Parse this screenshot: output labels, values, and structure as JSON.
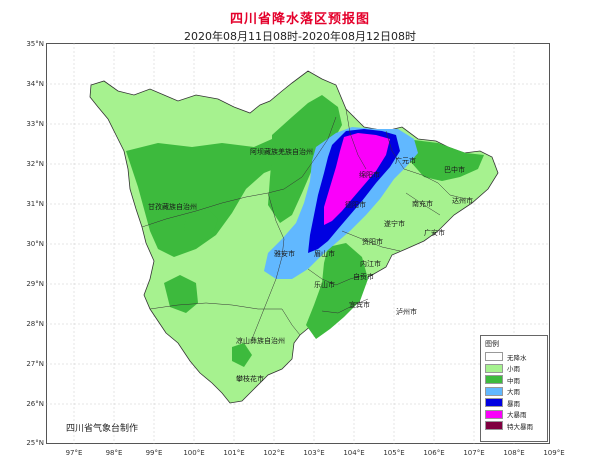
{
  "title": "四川省降水落区预报图",
  "subtitle": "2020年08月11日08时-2020年08月12日08时",
  "credit": "四川省气象台制作",
  "lat_labels": [
    "35°N",
    "34°N",
    "33°N",
    "32°N",
    "31°N",
    "30°N",
    "29°N",
    "28°N",
    "27°N",
    "26°N",
    "25°N"
  ],
  "lon_labels": [
    "97°E",
    "98°E",
    "99°E",
    "100°E",
    "101°E",
    "102°E",
    "103°E",
    "104°E",
    "105°E",
    "106°E",
    "107°E",
    "108°E",
    "109°E"
  ],
  "places": {
    "aba": "阿坝藏族羌族自治州",
    "mianyang": "绵阳市",
    "guangyuan": "广元市",
    "bazhong": "巴中市",
    "nanchong": "南充市",
    "dazhou": "达州市",
    "deyang": "德阳市",
    "suining": "遂宁市",
    "guangan": "广安市",
    "ganzi": "甘孜藏族自治州",
    "yaan": "雅安市",
    "meishan": "眉山市",
    "ziyang": "资阳市",
    "neijiang": "内江市",
    "leshan": "乐山市",
    "zigong": "自贡市",
    "yibin": "宜宾市",
    "luzhou": "泸州市",
    "liangshan": "凉山彝族自治州",
    "panzhihua": "攀枝花市"
  },
  "legend": {
    "title": "图例",
    "items": [
      {
        "label": "无降水",
        "color": "#ffffff"
      },
      {
        "label": "小雨",
        "color": "#a6f28f"
      },
      {
        "label": "中雨",
        "color": "#3dba3d"
      },
      {
        "label": "大雨",
        "color": "#61b8ff"
      },
      {
        "label": "暴雨",
        "color": "#0000e1"
      },
      {
        "label": "大暴雨",
        "color": "#fa00fa"
      },
      {
        "label": "特大暴雨",
        "color": "#800040"
      }
    ]
  }
}
